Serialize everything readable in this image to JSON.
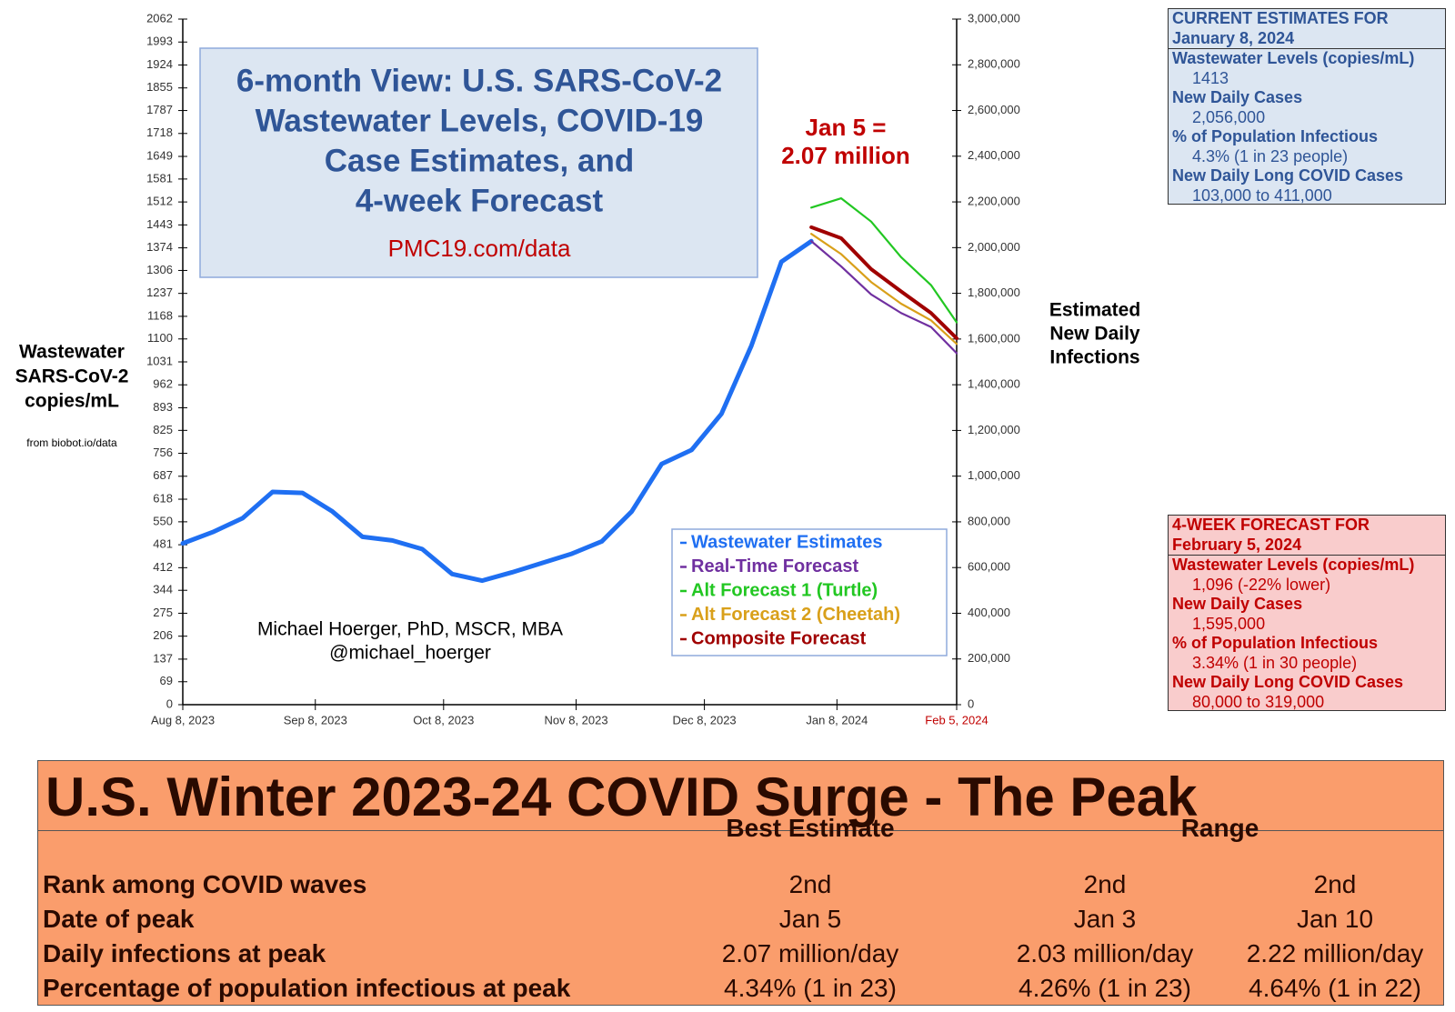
{
  "chart_data": {
    "type": "line",
    "title_lines": [
      "6-month View: U.S. SARS-CoV-2",
      "Wastewater Levels, COVID-19",
      "Case Estimates, and",
      "4-week Forecast"
    ],
    "subtitle": "PMC19.com/data",
    "annotation_lines": [
      "Jan 5 =",
      "2.07 million"
    ],
    "credit_lines": [
      "Michael Hoerger, PhD, MSCR, MBA",
      "@michael_hoerger"
    ],
    "ylabel_lines": [
      "Wastewater",
      "SARS-CoV-2",
      "copies/mL"
    ],
    "source": "from biobot.io/data",
    "y2label_lines": [
      "Estimated",
      "New Daily",
      "Infections"
    ],
    "x": [
      "2023-08-08",
      "2023-08-15",
      "2023-08-22",
      "2023-08-29",
      "2023-09-05",
      "2023-09-12",
      "2023-09-19",
      "2023-09-26",
      "2023-10-03",
      "2023-10-10",
      "2023-10-17",
      "2023-10-24",
      "2023-10-31",
      "2023-11-07",
      "2023-11-14",
      "2023-11-21",
      "2023-11-28",
      "2023-12-05",
      "2023-12-12",
      "2023-12-19",
      "2023-12-26",
      "2024-01-02",
      "2024-01-09",
      "2024-01-16",
      "2024-01-23",
      "2024-01-30",
      "2024-02-05"
    ],
    "series": [
      {
        "name": "Wastewater Estimates",
        "color": "#1f6ff2",
        "values": [
          485,
          519,
          561,
          640,
          637,
          581,
          505,
          494,
          468,
          393,
          373,
          398,
          426,
          454,
          491,
          581,
          724,
          766,
          875,
          1080,
          1332,
          1394,
          null,
          null,
          null,
          null,
          null
        ]
      },
      {
        "name": "Real-Time Forecast",
        "color": "#7030a0",
        "values": [
          null,
          null,
          null,
          null,
          null,
          null,
          null,
          null,
          null,
          null,
          null,
          null,
          null,
          null,
          null,
          null,
          null,
          null,
          null,
          null,
          null,
          1394,
          1318,
          1234,
          1178,
          1136,
          1057
        ]
      },
      {
        "name": "Alt Forecast 1 (Turtle)",
        "color": "#22c722",
        "values": [
          null,
          null,
          null,
          null,
          null,
          null,
          null,
          null,
          null,
          null,
          null,
          null,
          null,
          null,
          null,
          null,
          null,
          null,
          null,
          null,
          null,
          1495,
          1523,
          1453,
          1346,
          1262,
          1150
        ]
      },
      {
        "name": "Alt Forecast 2 (Cheetah)",
        "color": "#d9a01a",
        "values": [
          null,
          null,
          null,
          null,
          null,
          null,
          null,
          null,
          null,
          null,
          null,
          null,
          null,
          null,
          null,
          null,
          null,
          null,
          null,
          null,
          null,
          1416,
          1355,
          1271,
          1206,
          1156,
          1085
        ]
      },
      {
        "name": "Composite Forecast",
        "color": "#a00000",
        "values": [
          null,
          null,
          null,
          null,
          null,
          null,
          null,
          null,
          null,
          null,
          null,
          null,
          null,
          null,
          null,
          null,
          null,
          null,
          null,
          null,
          null,
          1436,
          1403,
          1310,
          1243,
          1178,
          1102
        ]
      }
    ],
    "xlim": [
      "2023-08-08",
      "2024-02-05"
    ],
    "xticks": [
      {
        "value": "2023-08-08",
        "label": "Aug 8, 2023"
      },
      {
        "value": "2023-09-08",
        "label": "Sep 8, 2023"
      },
      {
        "value": "2023-10-08",
        "label": "Oct 8, 2023"
      },
      {
        "value": "2023-11-08",
        "label": "Nov 8, 2023"
      },
      {
        "value": "2023-12-08",
        "label": "Dec 8, 2023"
      },
      {
        "value": "2024-01-08",
        "label": "Jan 8, 2024"
      },
      {
        "value": "2024-02-05",
        "label": "Feb 5, 2024"
      }
    ],
    "ylim": [
      0,
      2062
    ],
    "yticks": [
      0,
      69,
      137,
      206,
      275,
      344,
      412,
      481,
      550,
      618,
      687,
      756,
      825,
      893,
      962,
      1031,
      1100,
      1168,
      1237,
      1306,
      1374,
      1443,
      1512,
      1581,
      1649,
      1718,
      1787,
      1855,
      1924,
      1993,
      2062
    ],
    "y2lim": [
      0,
      3000000
    ],
    "y2ticks": [
      0,
      {
        "value": 200000,
        "label": "200,000"
      },
      {
        "value": 400000,
        "label": "400,000"
      },
      {
        "value": 600000,
        "label": "600,000"
      },
      {
        "value": 800000,
        "label": "800,000"
      },
      {
        "value": 1000000,
        "label": "1,000,000"
      },
      {
        "value": 1200000,
        "label": "1,200,000"
      },
      {
        "value": 1400000,
        "label": "1,400,000"
      },
      {
        "value": 1600000,
        "label": "1,600,000"
      },
      {
        "value": 1800000,
        "label": "1,800,000"
      },
      {
        "value": 2000000,
        "label": "2,000,000"
      },
      {
        "value": 2200000,
        "label": "2,200,000"
      },
      {
        "value": 2400000,
        "label": "2,400,000"
      },
      {
        "value": 2600000,
        "label": "2,600,000"
      },
      {
        "value": 2800000,
        "label": "2,800,000"
      },
      {
        "value": 3000000,
        "label": "3,000,000"
      }
    ],
    "grid": false,
    "legend": "lower right"
  },
  "current_estimates": {
    "heading": [
      "CURRENT ESTIMATES FOR",
      "January 8, 2024"
    ],
    "items": [
      {
        "label": "Wastewater Levels (copies/mL)",
        "value": "1413"
      },
      {
        "label": "New Daily Cases",
        "value": "2,056,000"
      },
      {
        "label": "% of Population Infectious",
        "value": "4.3% (1 in 23 people)"
      },
      {
        "label": "New Daily Long COVID Cases",
        "value": "103,000 to 411,000"
      }
    ]
  },
  "forecast_box": {
    "heading": [
      "4-WEEK FORECAST FOR",
      "February 5, 2024"
    ],
    "items": [
      {
        "label": "Wastewater Levels (copies/mL)",
        "value": "1,096 (-22% lower)"
      },
      {
        "label": "New Daily Cases",
        "value": "1,595,000"
      },
      {
        "label": "% of Population Infectious",
        "value": "3.34% (1 in 30 people)"
      },
      {
        "label": "New Daily Long COVID Cases",
        "value": "80,000 to 319,000"
      }
    ]
  },
  "peak_table": {
    "title": "U.S. Winter 2023-24 COVID Surge - The Peak",
    "headers": [
      "Best Estimate",
      "Range"
    ],
    "rows": [
      [
        "Rank among COVID waves",
        "2nd",
        "2nd",
        "2nd"
      ],
      [
        "Date of peak",
        "Jan 5",
        "Jan 3",
        "Jan 10"
      ],
      [
        "Daily infections at peak",
        "2.07 million/day",
        "2.03 million/day",
        "2.22 million/day"
      ],
      [
        "Percentage of population infectious at peak",
        "4.34% (1 in 23)",
        "4.26% (1 in 23)",
        "4.64% (1 in 22)"
      ]
    ]
  }
}
